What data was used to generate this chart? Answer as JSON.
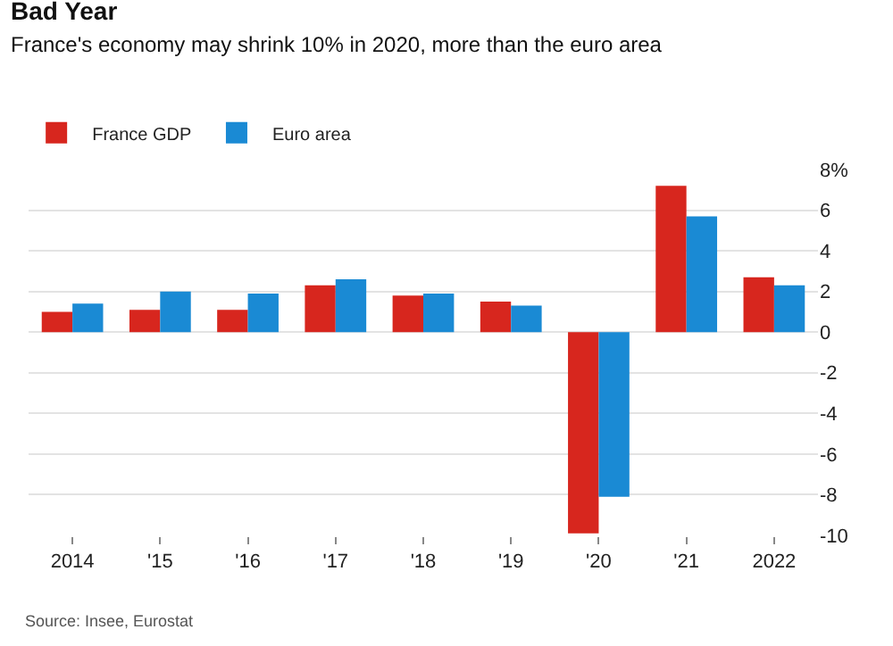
{
  "chart_data": {
    "type": "bar",
    "title": "Bad Year",
    "subtitle": "France's economy may shrink 10% in 2020, more than the euro area",
    "categories": [
      "2014",
      "'15",
      "'16",
      "'17",
      "'18",
      "'19",
      "'20",
      "'21",
      "2022"
    ],
    "series": [
      {
        "name": "France GDP",
        "color": "#d7261e",
        "values": [
          1.0,
          1.1,
          1.1,
          2.3,
          1.8,
          1.5,
          -9.9,
          7.2,
          2.7
        ]
      },
      {
        "name": "Euro area",
        "color": "#1a8ad4",
        "values": [
          1.4,
          2.0,
          1.9,
          2.6,
          1.9,
          1.3,
          -8.1,
          5.7,
          2.3
        ]
      }
    ],
    "ylim": [
      -10,
      8
    ],
    "yticks": [
      {
        "value": 8,
        "label": "8%"
      },
      6,
      4,
      2,
      0,
      -2,
      -4,
      -6,
      -8,
      -10
    ],
    "grid": "y",
    "legend": "top left",
    "annotations": [
      "Source: Insee, Eurostat"
    ]
  }
}
